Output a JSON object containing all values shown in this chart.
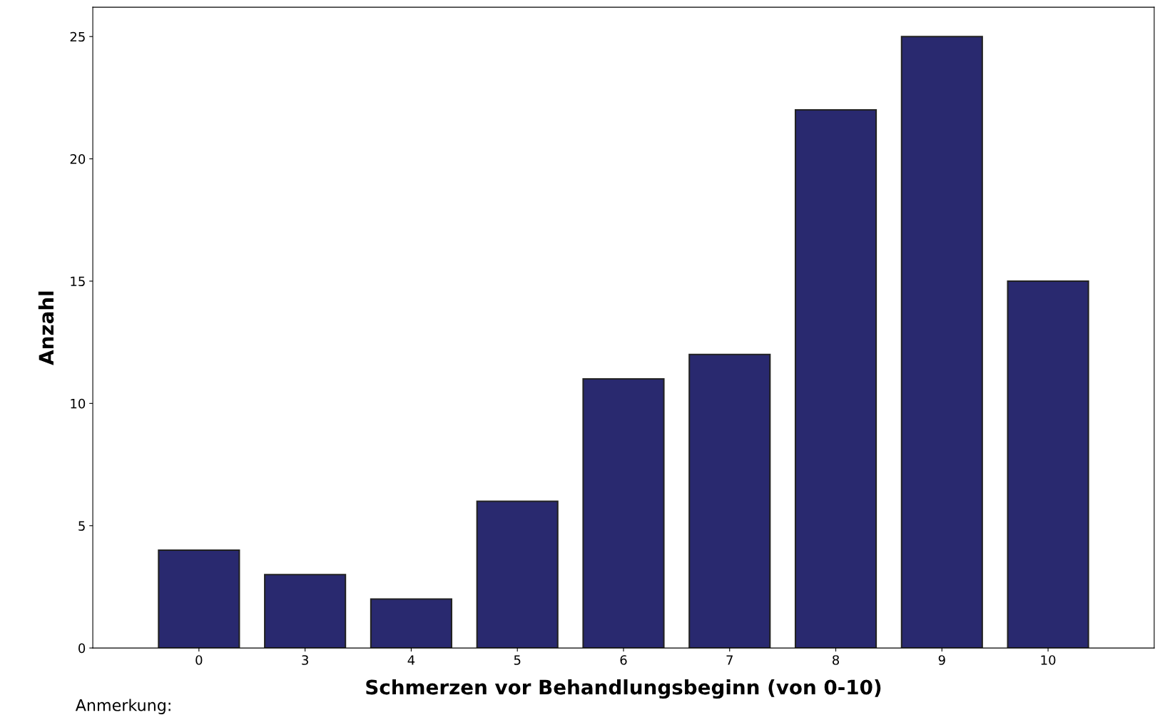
{
  "chart_data": {
    "type": "bar",
    "xlabel": "Schmerzen vor Behandlungsbeginn (von 0-10)",
    "ylabel": "Anzahl",
    "categories": [
      "0",
      "3",
      "4",
      "5",
      "6",
      "7",
      "8",
      "9",
      "10"
    ],
    "values": [
      4,
      3,
      2,
      6,
      11,
      12,
      22,
      25,
      15
    ],
    "color": "#29296f",
    "ylim": [
      0,
      26.2
    ],
    "yticks": [
      0,
      5,
      10,
      15,
      20,
      25
    ],
    "grid": false,
    "legend": false,
    "annotations": [
      "Anmerkung:"
    ]
  }
}
